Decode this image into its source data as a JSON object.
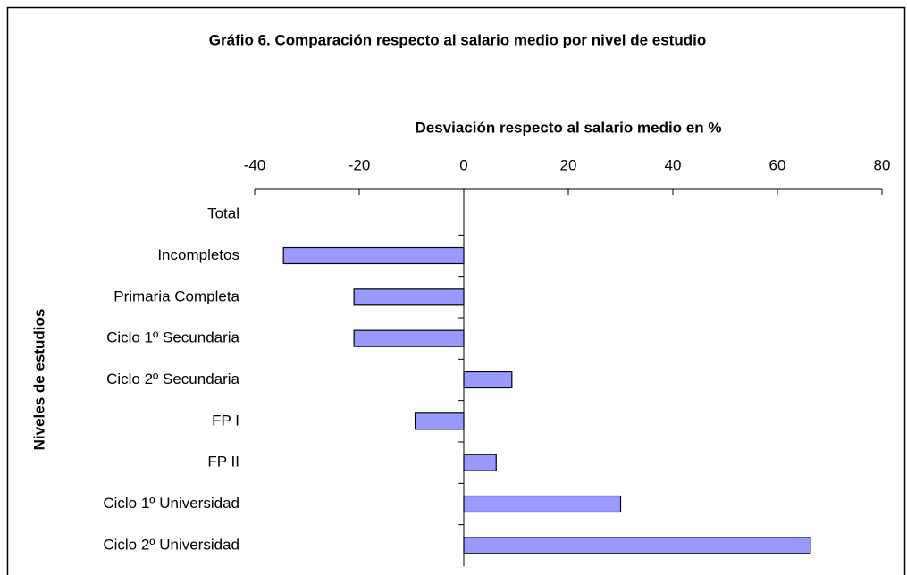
{
  "chart_data": {
    "type": "barh",
    "title": "Gráfio 6. Comparación respecto al salario medio por nivel de estudio",
    "x_label": "Desviación respecto al salario medio en %",
    "y_label": "Niveles de estudios",
    "categories": [
      "Total",
      "Incompletos",
      "Primaria Completa",
      "Ciclo 1º Secundaria",
      "Ciclo 2º Secundaria",
      "FP I",
      "FP II",
      "Ciclo 1º Universidad",
      "Ciclo 2º Universidad"
    ],
    "values": [
      0,
      -34.5,
      -21,
      -21,
      9.2,
      -9.3,
      6.2,
      30,
      66.3
    ],
    "color": "#9999ff",
    "xlim": [
      -40,
      80
    ],
    "xticks": [
      -40,
      -20,
      0,
      20,
      40,
      60,
      80
    ]
  }
}
